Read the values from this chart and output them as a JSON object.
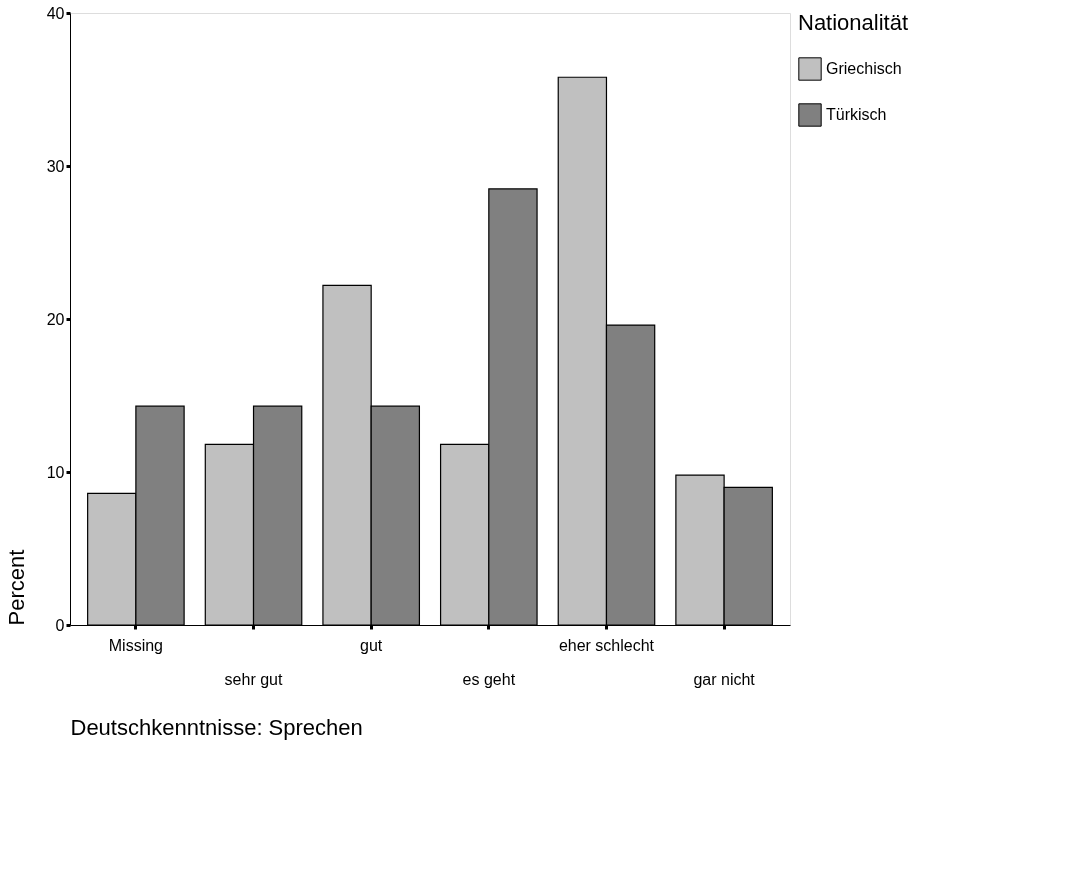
{
  "chart_data": {
    "type": "bar",
    "xlabel": "Deutschkenntnisse: Sprechen",
    "ylabel": "Percent",
    "legend_title": "Nationalität",
    "legend": "right",
    "categories": [
      "Missing",
      "sehr gut",
      "gut",
      "es geht",
      "eher schlecht",
      "gar nicht"
    ],
    "series": [
      {
        "name": "Griechisch",
        "color": "#c0c0c0",
        "values": [
          8.6,
          11.8,
          22.2,
          11.8,
          35.8,
          9.8
        ]
      },
      {
        "name": "Türkisch",
        "color": "#808080",
        "values": [
          14.3,
          14.3,
          14.3,
          28.5,
          19.6,
          9.0
        ]
      }
    ],
    "ylim": [
      0,
      40
    ],
    "yticks": [
      0,
      10,
      20,
      30,
      40
    ],
    "grid": false
  }
}
